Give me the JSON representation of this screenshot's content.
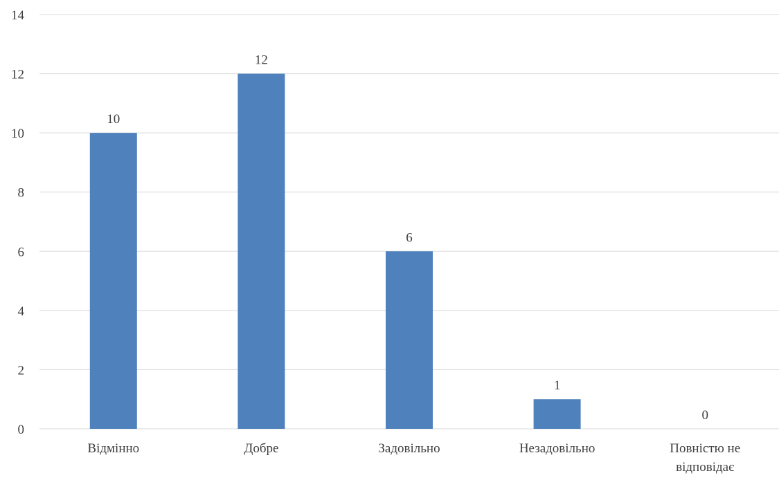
{
  "chart_data": {
    "type": "bar",
    "title": "",
    "xlabel": "",
    "ylabel": "",
    "categories": [
      [
        "Відмінно"
      ],
      [
        "Добре"
      ],
      [
        "Задовільно"
      ],
      [
        "Незадовільно"
      ],
      [
        "Повністю не",
        "відповідає"
      ]
    ],
    "values": [
      10,
      12,
      6,
      1,
      0
    ],
    "ylim": [
      0,
      14
    ],
    "yticks": [
      0,
      2,
      4,
      6,
      8,
      10,
      12,
      14
    ],
    "grid": true,
    "legend": "none",
    "data_labels": true,
    "colors": {
      "bar": "#4f81bd",
      "grid": "#d9d9d9",
      "text": "#404040"
    }
  }
}
